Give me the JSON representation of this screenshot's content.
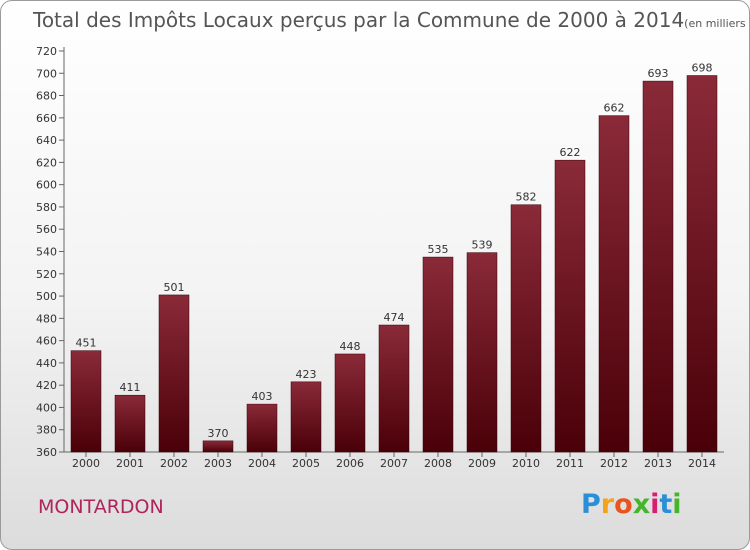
{
  "header": {
    "title": "Total des Impôts Locaux perçus par la Commune de 2000 à 2014",
    "unit": "(en milliers d'€)"
  },
  "footer": {
    "commune": "MONTARDON",
    "logo_letters": [
      "P",
      "r",
      "o",
      "x",
      "i",
      "t",
      "i"
    ],
    "logo_colors": [
      "#2a8fd6",
      "#f4a21a",
      "#e8541c",
      "#45b52c",
      "#d61f6e",
      "#2a8fd6",
      "#45b52c"
    ]
  },
  "colors": {
    "bar_top": "#8a2a38",
    "bar_bottom": "#4a0008",
    "axis": "#666666"
  },
  "chart_data": {
    "type": "bar",
    "title": "Total des Impôts Locaux perçus par la Commune de 2000 à 2014",
    "xlabel": "",
    "ylabel": "(en milliers d'€)",
    "categories": [
      "2000",
      "2001",
      "2002",
      "2003",
      "2004",
      "2005",
      "2006",
      "2007",
      "2008",
      "2009",
      "2010",
      "2011",
      "2012",
      "2013",
      "2014"
    ],
    "values": [
      451,
      411,
      501,
      370,
      403,
      423,
      448,
      474,
      535,
      539,
      582,
      622,
      662,
      693,
      698
    ],
    "ylim": [
      360,
      720
    ],
    "yticks": [
      360,
      380,
      400,
      420,
      440,
      460,
      480,
      500,
      520,
      540,
      560,
      580,
      600,
      620,
      640,
      660,
      680,
      700,
      720
    ],
    "grid": false
  }
}
